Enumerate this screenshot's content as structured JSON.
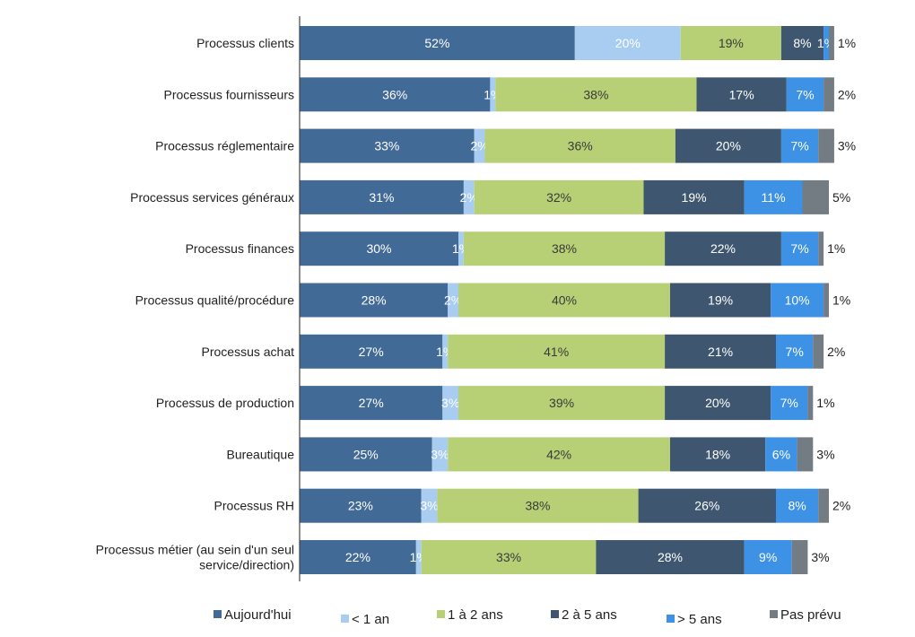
{
  "chart_data": {
    "type": "bar",
    "orientation": "horizontal",
    "stacked": true,
    "title": "",
    "xlabel": "",
    "ylabel": "",
    "xlim": [
      0,
      100
    ],
    "grid": false,
    "legend_position": "bottom",
    "categories": [
      [
        "Processus clients"
      ],
      [
        "Processus fournisseurs"
      ],
      [
        "Processus réglementaire"
      ],
      [
        "Processus services généraux"
      ],
      [
        "Processus finances"
      ],
      [
        "Processus qualité/procédure"
      ],
      [
        "Processus achat"
      ],
      [
        "Processus de production"
      ],
      [
        "Bureautique"
      ],
      [
        "Processus RH"
      ],
      [
        "Processus métier (au sein d'un seul",
        "service/direction)"
      ]
    ],
    "series": [
      {
        "name": "Aujourd'hui",
        "color": "#426a97",
        "label_color": "#ffffff",
        "values": [
          52,
          36,
          33,
          31,
          30,
          28,
          27,
          27,
          25,
          23,
          22
        ]
      },
      {
        "name": "< 1 an",
        "color": "#a9cdf0",
        "label_color": "#ffffff",
        "values": [
          20,
          1,
          2,
          2,
          1,
          2,
          1,
          3,
          3,
          3,
          1
        ]
      },
      {
        "name": "1 à 2 ans",
        "color": "#b7d075",
        "label_color": "#3a3a3a",
        "values": [
          19,
          38,
          36,
          32,
          38,
          40,
          41,
          39,
          42,
          38,
          33
        ]
      },
      {
        "name": "2 à 5 ans",
        "color": "#3e5670",
        "label_color": "#ffffff",
        "values": [
          8,
          17,
          20,
          19,
          22,
          19,
          21,
          20,
          18,
          26,
          28
        ]
      },
      {
        "name": "> 5 ans",
        "color": "#3d92e5",
        "label_color": "#ffffff",
        "values": [
          1,
          7,
          7,
          11,
          7,
          10,
          7,
          7,
          6,
          8,
          9
        ]
      },
      {
        "name": "Pas prévu",
        "color": "#737b83",
        "label_color": "#222222",
        "values": [
          1,
          2,
          3,
          5,
          1,
          1,
          2,
          1,
          3,
          2,
          3
        ]
      }
    ],
    "value_suffix": "%"
  }
}
